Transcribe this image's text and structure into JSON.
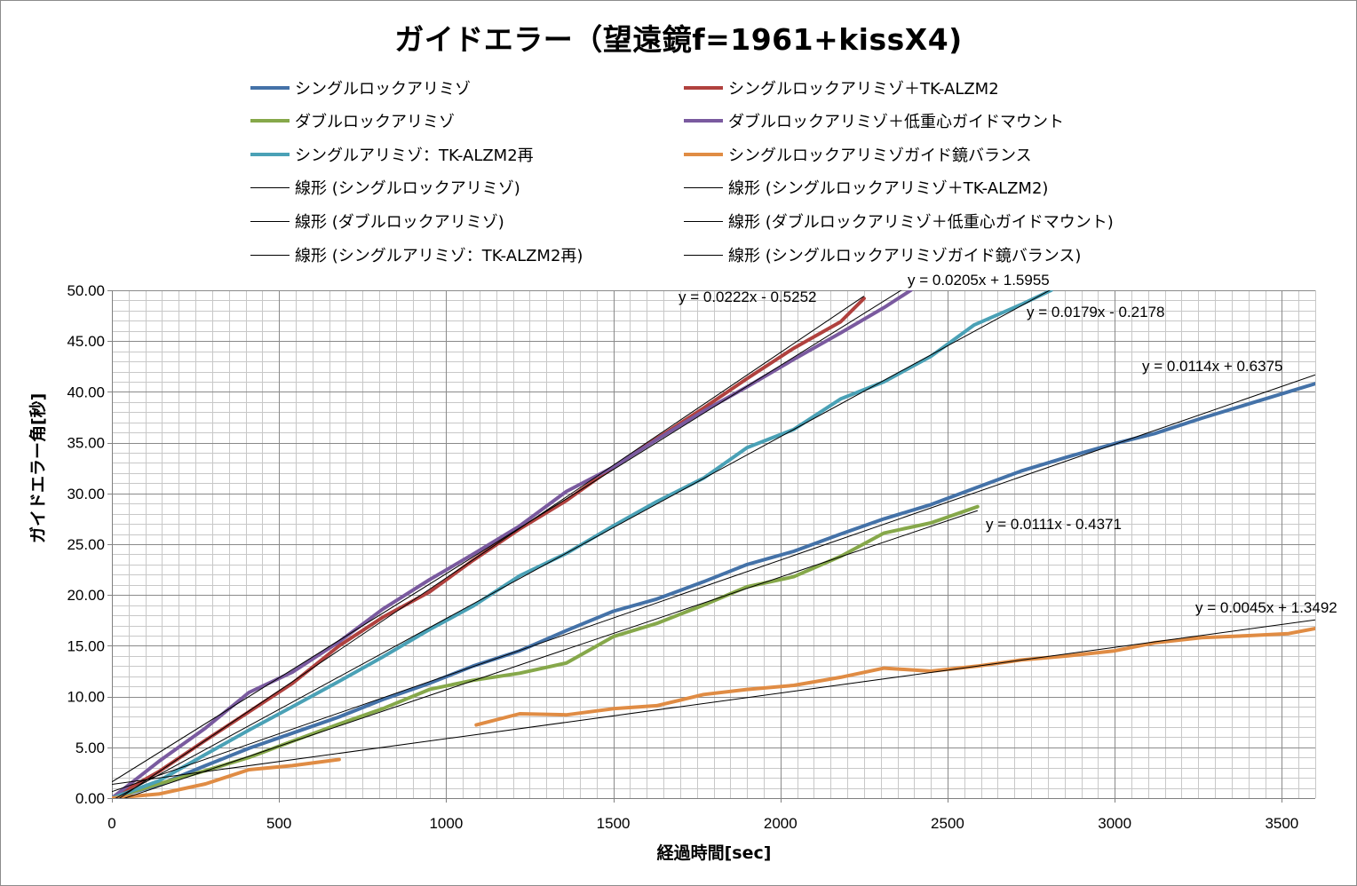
{
  "chart_data": {
    "type": "line",
    "title": "ガイドエラー（望遠鏡f=1961+kissX4)",
    "xlabel": "経過時間[sec]",
    "ylabel": "ガイドエラー角[秒]",
    "xlim": [
      0,
      3600
    ],
    "ylim": [
      0,
      50
    ],
    "x_ticks": [
      "0",
      "500",
      "1000",
      "1500",
      "2000",
      "2500",
      "3000",
      "3500"
    ],
    "y_ticks": [
      "0.00",
      "5.00",
      "10.00",
      "15.00",
      "20.00",
      "25.00",
      "30.00",
      "35.00",
      "40.00",
      "45.00",
      "50.00"
    ],
    "grid": true,
    "legend_position": "top",
    "series": [
      {
        "name": "シングルロックアリミゾ",
        "color": "#4472a8",
        "x": [
          0,
          140,
          280,
          410,
          540,
          680,
          810,
          950,
          1080,
          1220,
          1360,
          1500,
          1630,
          1770,
          1900,
          2040,
          2180,
          2310,
          2450,
          2580,
          2720,
          2860,
          3000,
          3120,
          3260,
          3400,
          3600
        ],
        "y": [
          0,
          1.3,
          3.2,
          4.9,
          6.4,
          8.0,
          9.7,
          11.3,
          13.0,
          14.5,
          16.5,
          18.4,
          19.6,
          21.3,
          23.0,
          24.3,
          26.0,
          27.5,
          28.9,
          30.5,
          32.2,
          33.6,
          34.9,
          35.9,
          37.4,
          38.8,
          40.8
        ]
      },
      {
        "name": "シングルロックアリミゾ＋TK-ALZM2",
        "color": "#b0413e",
        "x": [
          0,
          140,
          280,
          410,
          540,
          680,
          810,
          950,
          1080,
          1220,
          1360,
          1500,
          1630,
          1770,
          1900,
          2040,
          2180,
          2250
        ],
        "y": [
          0,
          2.6,
          5.7,
          8.5,
          11.3,
          15.0,
          17.8,
          20.3,
          23.4,
          26.5,
          29.3,
          32.6,
          35.4,
          38.4,
          41.3,
          44.3,
          46.9,
          49.2
        ]
      },
      {
        "name": "ダブルロックアリミゾ",
        "color": "#86a84a",
        "x": [
          0,
          140,
          280,
          410,
          540,
          680,
          810,
          950,
          1080,
          1220,
          1360,
          1500,
          1630,
          1770,
          1900,
          2040,
          2180,
          2310,
          2450,
          2590
        ],
        "y": [
          0,
          1.4,
          2.7,
          4.0,
          5.6,
          7.3,
          8.8,
          10.7,
          11.6,
          12.3,
          13.3,
          15.9,
          17.2,
          19.0,
          20.8,
          21.8,
          23.8,
          26.1,
          27.1,
          28.7
        ]
      },
      {
        "name": "ダブルロックアリミゾ＋低重心ガイドマウント",
        "color": "#7a5a9f",
        "x": [
          0,
          140,
          280,
          410,
          540,
          680,
          810,
          950,
          1080,
          1220,
          1360,
          1500,
          1630,
          1770,
          1900,
          2040,
          2180,
          2310,
          2390
        ],
        "y": [
          0,
          3.6,
          6.9,
          10.4,
          12.4,
          15.4,
          18.6,
          21.5,
          24.0,
          26.8,
          30.2,
          32.6,
          35.3,
          38.1,
          40.5,
          43.2,
          45.8,
          48.3,
          50.0
        ]
      },
      {
        "name": "シングルアリミゾ：TK-ALZM2再",
        "color": "#4aa1b6",
        "x": [
          0,
          140,
          280,
          410,
          540,
          680,
          810,
          950,
          1080,
          1220,
          1360,
          1500,
          1630,
          1770,
          1900,
          2040,
          2180,
          2310,
          2450,
          2580,
          2720,
          2810
        ],
        "y": [
          0,
          1.7,
          4.3,
          6.7,
          9.0,
          11.5,
          13.9,
          16.6,
          18.9,
          21.9,
          24.1,
          26.8,
          29.2,
          31.5,
          34.5,
          36.3,
          39.3,
          41.0,
          43.5,
          46.6,
          48.6,
          50.0
        ]
      },
      {
        "name": "シングルロックアリミゾガイド鏡バランス",
        "color": "#e08c44",
        "x": [
          0,
          140,
          280,
          410,
          540,
          680,
          1090,
          1220,
          1360,
          1500,
          1630,
          1770,
          1900,
          2040,
          2180,
          2310,
          2450,
          2590,
          2720,
          2860,
          3000,
          3120,
          3260,
          3400,
          3520,
          3600
        ],
        "y": [
          0,
          0.4,
          1.4,
          2.8,
          3.2,
          3.8,
          7.2,
          8.3,
          8.2,
          8.8,
          9.1,
          10.2,
          10.7,
          11.1,
          11.9,
          12.8,
          12.5,
          13.0,
          13.6,
          14.0,
          14.5,
          15.3,
          15.8,
          16.0,
          16.2,
          16.7
        ]
      }
    ],
    "trendlines": [
      {
        "name": "線形 (シングルロックアリミゾ)",
        "slope": 0.0114,
        "intercept": 0.6375,
        "x_range": [
          0,
          3600
        ],
        "equation": "y = 0.0114x + 0.6375"
      },
      {
        "name": "線形 (シングルロックアリミゾ＋TK-ALZM2)",
        "slope": 0.0222,
        "intercept": -0.5252,
        "x_range": [
          0,
          2250
        ],
        "equation": "y = 0.0222x - 0.5252"
      },
      {
        "name": "線形 (ダブルロックアリミゾ)",
        "slope": 0.0111,
        "intercept": -0.4371,
        "x_range": [
          0,
          2590
        ],
        "equation": "y = 0.0111x - 0.4371"
      },
      {
        "name": "線形 (ダブルロックアリミゾ＋低重心ガイドマウント)",
        "slope": 0.0205,
        "intercept": 1.5955,
        "x_range": [
          0,
          2450
        ],
        "equation": "y = 0.0205x + 1.5955"
      },
      {
        "name": "線形 (シングルアリミゾ：TK-ALZM2再)",
        "slope": 0.0179,
        "intercept": -0.2178,
        "x_range": [
          0,
          2810
        ],
        "equation": "y = 0.0179x - 0.2178"
      },
      {
        "name": "線形 (シングルロックアリミゾガイド鏡バランス)",
        "slope": 0.0045,
        "intercept": 1.3492,
        "x_range": [
          0,
          3600
        ],
        "equation": "y = 0.0045x + 1.3492"
      }
    ]
  },
  "legend": {
    "series_labels": [
      "シングルロックアリミゾ",
      "シングルロックアリミゾ＋TK-ALZM2",
      "ダブルロックアリミゾ",
      "ダブルロックアリミゾ＋低重心ガイドマウント",
      "シングルアリミゾ：TK-ALZM2再",
      "シングルロックアリミゾガイド鏡バランス"
    ],
    "trend_labels": [
      "線形 (シングルロックアリミゾ)",
      "線形 (シングルロックアリミゾ＋TK-ALZM2)",
      "線形 (ダブルロックアリミゾ)",
      "線形 (ダブルロックアリミゾ＋低重心ガイドマウント)",
      "線形 (シングルアリミゾ：TK-ALZM2再)",
      "線形 (シングルロックアリミゾガイド鏡バランス)"
    ]
  }
}
